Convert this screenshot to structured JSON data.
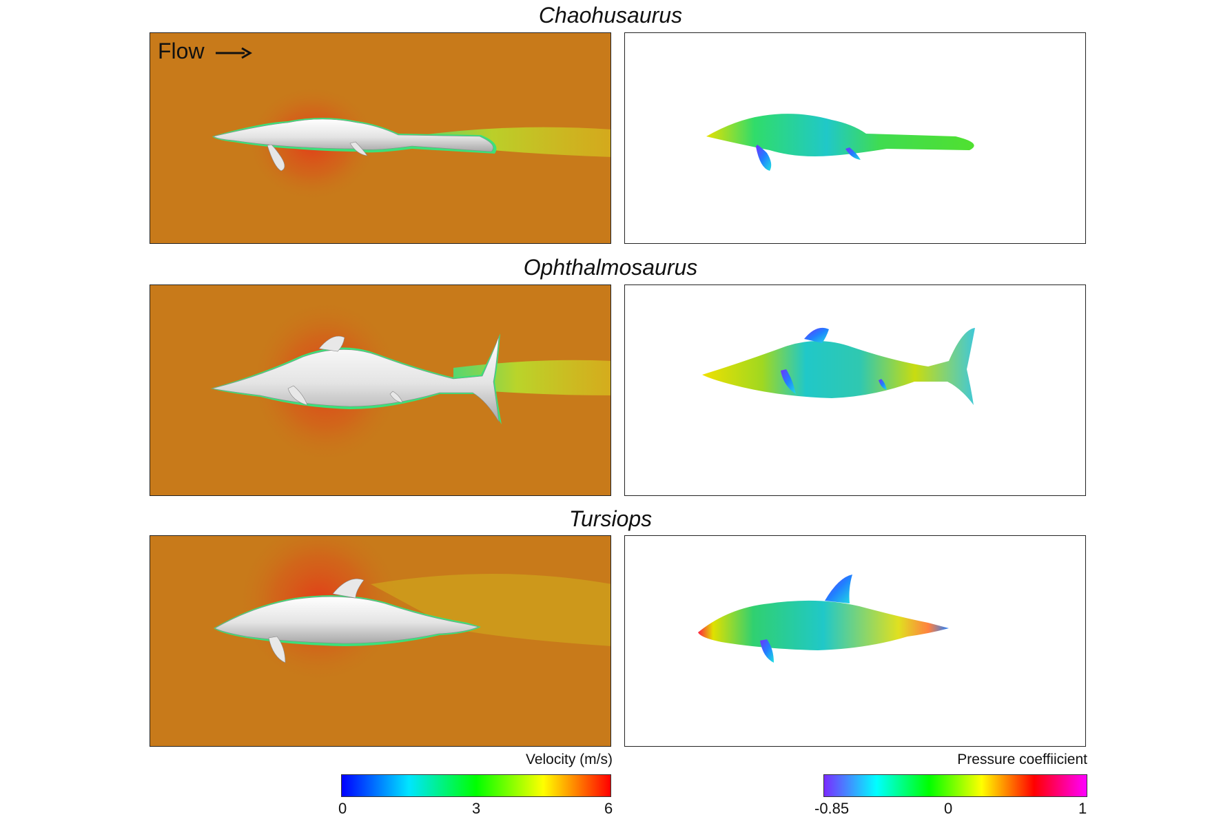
{
  "panels": [
    {
      "title": "Chaohusaurus"
    },
    {
      "title": "Ophthalmosaurus"
    },
    {
      "title": "Tursiops"
    }
  ],
  "flow_label": "Flow",
  "arrow_icon": "right-arrow-icon",
  "colorbars": {
    "velocity": {
      "title": "Velocity (m/s)",
      "ticks": [
        "0",
        "3",
        "6"
      ],
      "range": [
        0,
        6
      ],
      "colors": [
        "#0000ff",
        "#00e5ff",
        "#00ff00",
        "#ffff00",
        "#ff0000"
      ]
    },
    "pressure": {
      "title": "Pressure coeffiicient",
      "ticks": [
        "-0.85",
        "0",
        "1"
      ],
      "range": [
        -0.85,
        1
      ],
      "colors": [
        "#7a2bff",
        "#00ffff",
        "#00ff00",
        "#ffff00",
        "#ff0000",
        "#ff00ff"
      ]
    }
  },
  "colors": {
    "flow_background": "#c87a1a",
    "high_velocity_halo": "#e0421a",
    "wake": "#b8d82a",
    "body": "#e8e8e8"
  }
}
